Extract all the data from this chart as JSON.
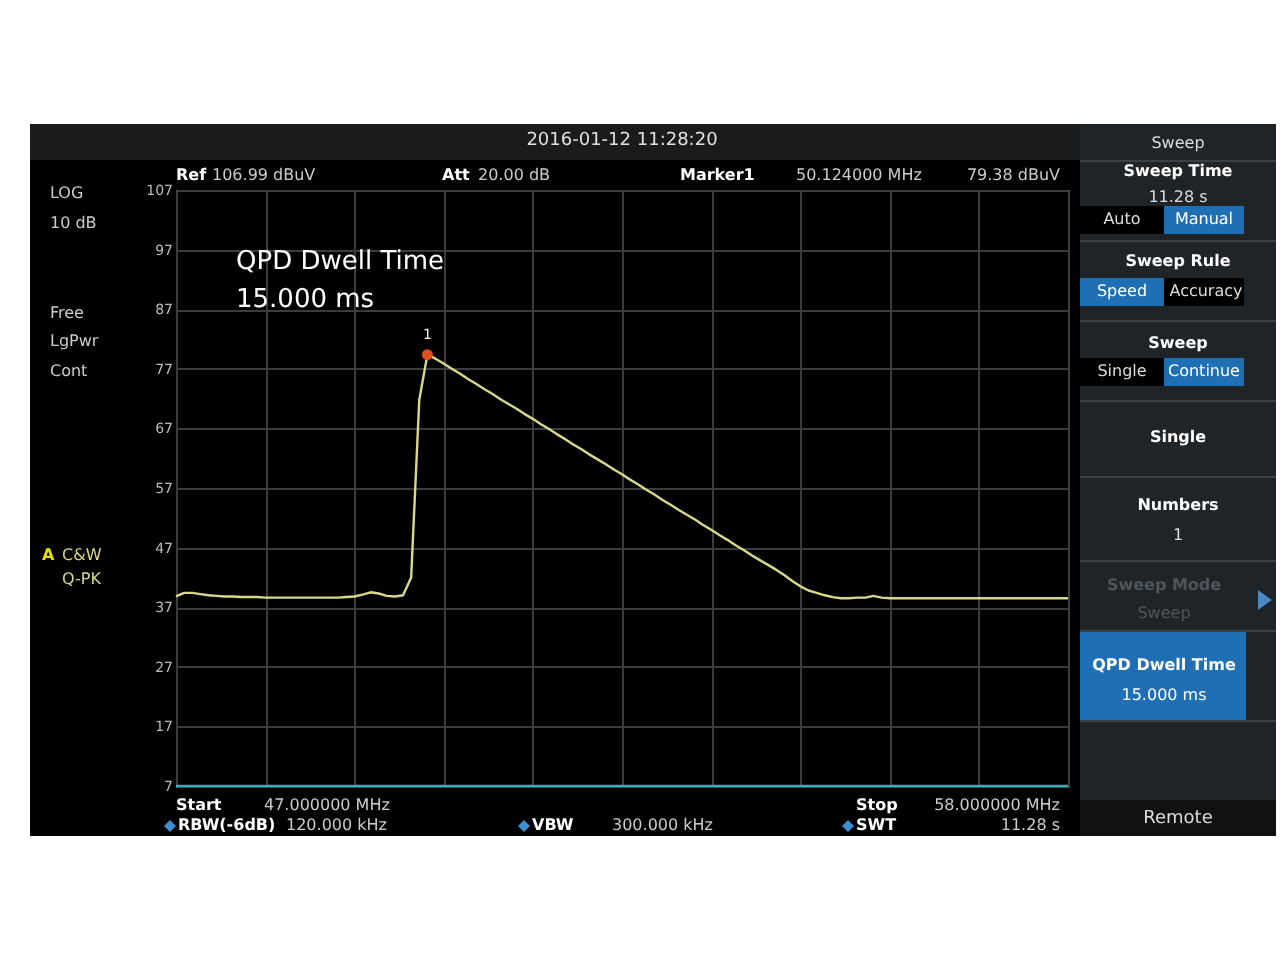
{
  "chart_data": {
    "type": "line",
    "title": "2016-01-12  11:28:20",
    "categories": [
      null,
      null,
      null,
      null,
      null,
      null,
      null,
      null,
      null,
      null,
      null,
      null,
      null,
      null,
      null,
      null,
      null,
      null,
      null,
      null,
      null,
      null,
      null,
      null,
      null,
      null,
      null,
      null,
      null,
      null,
      null,
      null,
      null,
      null,
      null,
      null,
      null,
      null,
      null,
      null,
      null,
      null,
      null,
      null,
      null,
      null,
      null,
      null,
      null,
      null,
      null,
      null,
      null,
      null,
      null,
      null,
      null,
      null,
      null,
      null,
      null,
      null,
      null,
      null,
      null,
      null,
      null,
      null,
      null,
      null,
      null,
      null,
      null,
      null,
      null,
      null,
      null,
      null,
      null,
      null,
      null,
      null,
      null,
      null,
      null,
      null,
      null,
      null,
      null,
      null,
      null,
      null,
      null,
      null,
      null,
      null,
      null,
      null,
      null,
      null,
      null,
      null,
      null,
      null,
      null,
      null,
      null,
      null,
      null,
      null,
      null
    ],
    "ylim": [
      7,
      107
    ],
    "yticks": [
      7,
      17,
      27,
      37,
      47,
      57,
      67,
      77,
      87,
      97,
      107
    ],
    "tick_labels": "y",
    "grid": true,
    "line_style": "solid",
    "series": [
      {
        "color": "#d8d88c",
        "values": [
          38.8,
          39.4,
          39.4,
          39.2,
          39.0,
          38.9,
          38.8,
          38.8,
          38.7,
          38.7,
          38.7,
          38.6,
          38.6,
          38.6,
          38.6,
          38.6,
          38.6,
          38.6,
          38.6,
          38.6,
          38.6,
          38.7,
          38.8,
          39.1,
          39.5,
          39.3,
          38.9,
          38.8,
          39.0,
          42.0,
          71.8,
          79.38,
          78.7,
          77.9,
          77.0,
          76.2,
          75.3,
          74.5,
          73.6,
          72.8,
          71.9,
          71.1,
          70.3,
          69.4,
          68.6,
          67.7,
          66.9,
          66.0,
          65.2,
          64.3,
          63.5,
          62.6,
          61.8,
          61.0,
          60.1,
          59.3,
          58.4,
          57.6,
          56.7,
          55.9,
          55.0,
          54.2,
          53.3,
          52.5,
          51.7,
          50.8,
          50.0,
          49.1,
          48.3,
          47.4,
          46.6,
          45.7,
          44.9,
          44.1,
          43.3,
          42.4,
          41.4,
          40.5,
          39.8,
          39.4,
          39.0,
          38.7,
          38.5,
          38.5,
          38.6,
          38.6,
          38.9,
          38.6,
          38.5,
          38.5,
          38.5,
          38.5,
          38.5,
          38.5,
          38.5,
          38.5,
          38.5,
          38.5,
          38.5,
          38.5,
          38.5,
          38.5,
          38.5,
          38.5,
          38.5,
          38.5,
          38.5,
          38.5,
          38.5,
          38.5,
          38.5
        ]
      },
      {
        "color": "#3fa9b5",
        "values": [
          7,
          7,
          7,
          7,
          7,
          7,
          7,
          7,
          7,
          7,
          7,
          7,
          7,
          7,
          7,
          7,
          7,
          7,
          7,
          7,
          7,
          7,
          7,
          7,
          7,
          7,
          7,
          7,
          7,
          7,
          7,
          7,
          7,
          7,
          7,
          7,
          7,
          7,
          7,
          7,
          7,
          7,
          7,
          7,
          7,
          7,
          7,
          7,
          7,
          7,
          7,
          7,
          7,
          7,
          7,
          7,
          7,
          7,
          7,
          7,
          7,
          7,
          7,
          7,
          7,
          7,
          7,
          7,
          7,
          7,
          7,
          7,
          7,
          7,
          7,
          7,
          7,
          7,
          7,
          7,
          7,
          7,
          7,
          7,
          7,
          7,
          7,
          7,
          7,
          7,
          7,
          7,
          7,
          7,
          7,
          7,
          7,
          7,
          7,
          7,
          7,
          7,
          7,
          7,
          7,
          7,
          7,
          7,
          7,
          7,
          7
        ]
      },
      {
        "type": "scatter",
        "marker": "circle",
        "color": "#e0501c",
        "values": [
          null,
          null,
          null,
          null,
          null,
          null,
          null,
          null,
          null,
          null,
          null,
          null,
          null,
          null,
          null,
          null,
          null,
          null,
          null,
          null,
          null,
          null,
          null,
          null,
          null,
          null,
          null,
          null,
          null,
          null,
          null,
          79.38,
          null,
          null,
          null,
          null,
          null,
          null,
          null,
          null,
          null,
          null,
          null,
          null,
          null,
          null,
          null,
          null,
          null,
          null,
          null,
          null,
          null,
          null,
          null,
          null,
          null,
          null,
          null,
          null,
          null,
          null,
          null,
          null,
          null,
          null,
          null,
          null,
          null,
          null,
          null,
          null,
          null,
          null,
          null,
          null,
          null,
          null,
          null,
          null,
          null,
          null,
          null,
          null,
          null,
          null,
          null,
          null,
          null,
          null,
          null,
          null,
          null,
          null,
          null,
          null,
          null,
          null,
          null,
          null,
          null,
          null,
          null,
          null,
          null,
          null,
          null,
          null,
          null,
          null,
          null
        ]
      }
    ],
    "annotations": [
      "Ref",
      "106.99 dBuV",
      "Att",
      "20.00 dB",
      "Marker1",
      "50.124000 MHz",
      "79.38 dBuV",
      "LOG",
      "10 dB",
      "Free",
      "LgPwr",
      "Cont",
      "A",
      "C&W",
      "Q-PK",
      "QPD Dwell Time",
      "15.000 ms",
      "Start",
      "47.000000 MHz",
      "Stop",
      "58.000000 MHz",
      "RBW(-6dB)",
      "120.000 kHz",
      "VBW",
      "300.000 kHz",
      "SWT",
      "11.28 s",
      "Sweep",
      "Sweep Time",
      "11.28 s",
      "Auto",
      "Manual",
      "Sweep Rule",
      "Speed",
      "Accuracy",
      "Sweep",
      "Single",
      "Continue",
      "Single",
      "Numbers",
      "1",
      "Sweep Mode",
      "Sweep",
      "QPD Dwell Time",
      "15.000 ms",
      "Remote",
      {
        "text": "1",
        "y": 79.38
      }
    ]
  }
}
